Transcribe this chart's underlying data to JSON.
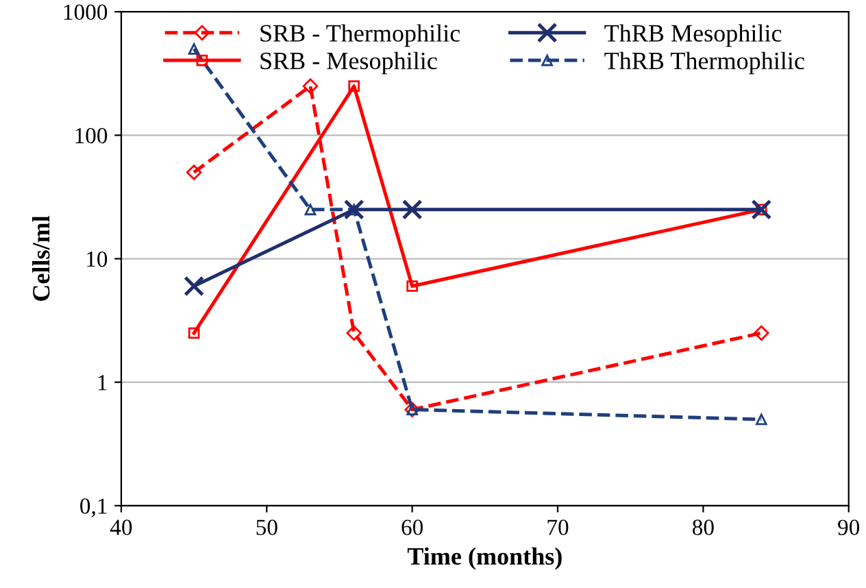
{
  "chart_data": {
    "type": "line",
    "xlabel": "Time (months)",
    "ylabel": "Cells/ml",
    "log": "y",
    "xlim": [
      40,
      90
    ],
    "xticks": [
      40,
      50,
      60,
      70,
      80,
      90
    ],
    "ylim": [
      0.1,
      1000
    ],
    "yticks": [
      {
        "value": 0.1,
        "label": "0,1"
      },
      1,
      10,
      100,
      1000
    ],
    "grid": "y",
    "legend": "top",
    "series": [
      {
        "name": "SRB - Thermophilic",
        "color": "#ff0000",
        "line_style": "dashed",
        "marker": "diamond",
        "x": [
          45,
          53,
          56,
          60,
          84
        ],
        "values": [
          50,
          250,
          2.5,
          0.6,
          2.5
        ]
      },
      {
        "name": "SRB - Mesophilic",
        "color": "#ff0000",
        "line_style": "solid",
        "marker": "square",
        "x": [
          45,
          56,
          60,
          84
        ],
        "values": [
          2.5,
          250,
          6,
          25
        ]
      },
      {
        "name": "ThRB Mesophilic",
        "color": "#1f2f6e",
        "line_style": "solid",
        "marker": "cross",
        "x": [
          45,
          56,
          60,
          84
        ],
        "values": [
          6,
          25,
          25,
          25
        ]
      },
      {
        "name": "ThRB Thermophilic",
        "color": "#1f3f7e",
        "line_style": "dashed",
        "marker": "triangle",
        "x": [
          45,
          53,
          56,
          60,
          84
        ],
        "values": [
          500,
          25,
          25,
          0.6,
          0.5
        ]
      }
    ]
  }
}
